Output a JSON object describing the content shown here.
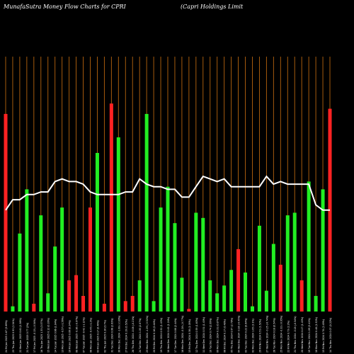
{
  "header": {
    "left": "MunafaSutra  Money Flow  Charts for CPRI",
    "right": "(Capri   Holdings Limit"
  },
  "colors": {
    "background": "#000000",
    "grid": "#b8650f",
    "up": "#22ee22",
    "down": "#ff2222",
    "line": "#ffffff"
  },
  "chart_data": {
    "type": "bar",
    "ylim": [
      0,
      100
    ],
    "categories": [
      "24 Fri Jan 2025",
      "23 Thu Jan 2025",
      "22 Wed Jan 2025",
      "21 Tue Jan 2025",
      "17 Fri Jan 2025",
      "16 Thu Jan 2025",
      "15 Wed Jan 2025",
      "14 Tue Jan 2025",
      "13 Mon Jan 2025",
      "10 Fri Jan 2025",
      "08 Wed Jan 2025",
      "07 Tue Jan 2025",
      "06 Mon Jan 2025",
      "03 Fri Jan 2025",
      "02 Thu Jan 2025",
      "31 Tue Dec 2024",
      "30 Mon Dec 2024",
      "27 Fri Dec 2024",
      "26 Thu Dec 2024",
      "24 Tue Dec 2024",
      "23 Mon Dec 2024",
      "20 Fri Dec 2024",
      "19 Thu Dec 2024",
      "18 Wed Dec 2024",
      "17 Tue Dec 2024",
      "16 Mon Dec 2024",
      "13 Fri Dec 2024",
      "12 Thu Dec 2024",
      "11 Wed Dec 2024",
      "10 Tue Dec 2024",
      "09 Mon Dec 2024",
      "06 Fri Dec 2024",
      "05 Thu Dec 2024",
      "04 Wed Dec 2024",
      "03 Tue Dec 2024",
      "02 Mon Dec 2024",
      "29 Fri Nov 2024",
      "27 Wed Nov 2024",
      "26 Tue Nov 2024",
      "25 Mon Nov 2024",
      "22 Fri Nov 2024",
      "21 Thu Nov 2024",
      "20 Wed Nov 2024",
      "19 Tue Nov 2024",
      "18 Mon Nov 2024",
      "15 Fri Nov 2024",
      "14 Thu Nov 2024"
    ],
    "labels": [
      "1.67 (3.69%)",
      "0.93 (2.34%)",
      "0.61 (1.56%)",
      "0.77 (2%)",
      "-0.13 (-0.34%)",
      "1.33 (3.57%)",
      "0.12 (0.33%)",
      "0.66 (1.84%)",
      "-0.57 (-1.56%)",
      "0.09 (0.24%)",
      "-0.36 (-0.97%)",
      "-0.42 (-1.12%)",
      "-0.45 (-1.2%)",
      "0.17 (0.46%)",
      "0.26 (0.7%)",
      "0.96 (2.63%)",
      "-1.08 (-2.89%)",
      "0.19 (0.52%)",
      "-0.08 (-0.21%)",
      "1.05 (2.87%)",
      "-1.29 (-3.51%)",
      "0.16 (0.44%)",
      "0.52 (1.43%)",
      "0.45 (1.24%)",
      "0.88 (2.44%)",
      "-0.28 (-0.77%)",
      "0.38 (1.05%)",
      "0.59 (1.63%)",
      "0.51 (1.43%)",
      "0.74 (2.09%)",
      "0.31 (0.87%)",
      "0.17 (0.48%)",
      "0.97 (2.78%)",
      "-0.16 (-0.45%)",
      "0.22 (0.64%)",
      "1.05 (3.1%)",
      "0.51 (1.52%)",
      "-0.25 (-0.74%)",
      "0.18 (0.54%)",
      "-0.32 (-0.95%)",
      "0.73 (2.2%)",
      "-0.18 (-0.54%)",
      "0.47 (1.43%)",
      "1.09 (3.41%)",
      "0.48 (1.52%)",
      "0.78 (2.49%)",
      "0.07 (0.22%)"
    ],
    "values": [
      76,
      2,
      30,
      47,
      3,
      37,
      7,
      25,
      40,
      12,
      14,
      6,
      40,
      61,
      3,
      80,
      67,
      4,
      6,
      12,
      76,
      4,
      40,
      48,
      34,
      13,
      1,
      38,
      36,
      12,
      7,
      10,
      16,
      24,
      15,
      2,
      33,
      8,
      26,
      18,
      37,
      38,
      12,
      50,
      6,
      47,
      78
    ],
    "direction": [
      "down",
      "up",
      "up",
      "up",
      "down",
      "up",
      "up",
      "up",
      "up",
      "down",
      "down",
      "down",
      "down",
      "up",
      "down",
      "down",
      "up",
      "down",
      "down",
      "up",
      "up",
      "up",
      "up",
      "up",
      "up",
      "up",
      "down",
      "up",
      "up",
      "up",
      "up",
      "up",
      "up",
      "down",
      "up",
      "up",
      "up",
      "up",
      "up",
      "down",
      "up",
      "up",
      "down",
      "up",
      "up",
      "up",
      "down"
    ],
    "line": [
      39,
      43,
      43,
      45,
      45,
      46,
      46,
      50,
      51,
      50,
      50,
      49,
      46,
      45,
      45,
      45,
      45,
      46,
      46,
      51,
      49,
      48,
      48,
      47,
      47,
      44,
      44,
      48,
      52,
      51,
      50,
      51,
      48,
      48,
      48,
      48,
      48,
      52,
      49,
      50,
      49,
      49,
      49,
      49,
      41,
      39,
      39
    ]
  }
}
